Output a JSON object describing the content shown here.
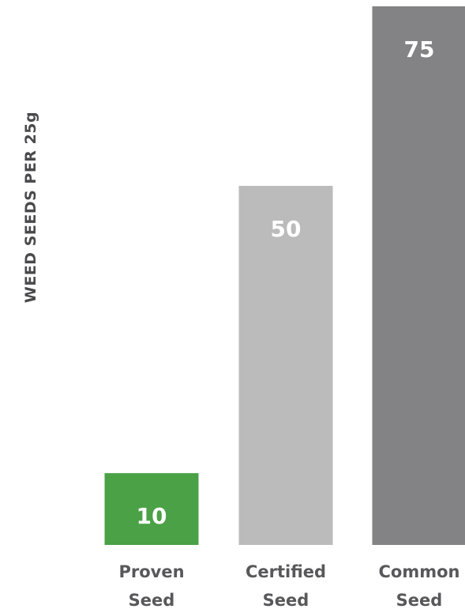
{
  "chart_data": {
    "type": "bar",
    "categories": [
      "Proven Seed",
      "Certified Seed",
      "Common Seed"
    ],
    "category_lines": [
      [
        "Proven",
        "Seed"
      ],
      [
        "Certified",
        "Seed"
      ],
      [
        "Common",
        "Seed"
      ]
    ],
    "values": [
      10,
      50,
      75
    ],
    "value_labels": [
      "10",
      "50",
      "75"
    ],
    "colors": [
      "#4ba146",
      "#bcbbbc",
      "#838385"
    ],
    "title": "",
    "xlabel": "",
    "ylabel": "WEED SEEDS PER 25g",
    "ylim": [
      0,
      75
    ],
    "grid": false,
    "legend": "none"
  }
}
